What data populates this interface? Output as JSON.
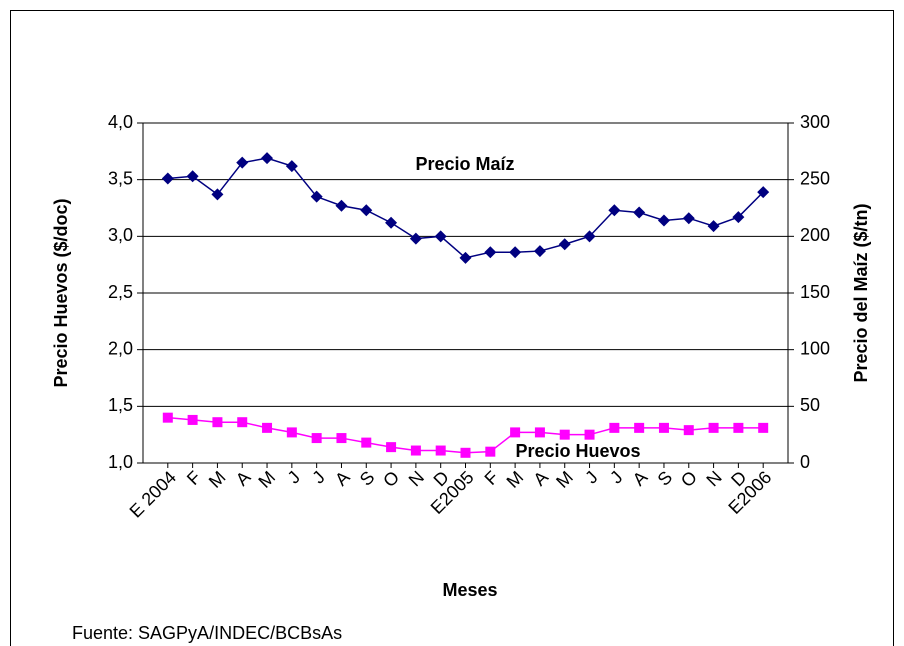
{
  "chart_data": {
    "type": "line",
    "x_label": "Meses",
    "y_label": "Precio Huevos ($/doc)",
    "y2_label": "Precio del Maíz ($/tn)",
    "source": "Fuente: SAGPyA/INDEC/BCBsAs",
    "annotations": [
      "Precio Maíz",
      "Precio Huevos"
    ],
    "categories": [
      "E 2004",
      "F",
      "M",
      "A",
      "M",
      "J",
      "J",
      "A",
      "S",
      "O",
      "N",
      "D",
      "E2005",
      "F",
      "M",
      "A",
      "M",
      "J",
      "J",
      "A",
      "S",
      "O",
      "N",
      "D",
      "E2006"
    ],
    "series": [
      {
        "name": "Precio Maíz",
        "color": "#000080",
        "marker": "diamond",
        "axis": "y2",
        "values": [
          251,
          253,
          237,
          265,
          269,
          262,
          235,
          227,
          223,
          212,
          198,
          200,
          181,
          186,
          186,
          187,
          193,
          200,
          223,
          221,
          214,
          216,
          209,
          217,
          239
        ]
      },
      {
        "name": "Precio Huevos",
        "color": "#ff00ff",
        "marker": "square",
        "values": [
          1.4,
          1.38,
          1.36,
          1.36,
          1.31,
          1.27,
          1.22,
          1.22,
          1.18,
          1.14,
          1.11,
          1.11,
          1.09,
          1.1,
          1.27,
          1.27,
          1.25,
          1.25,
          1.31,
          1.31,
          1.31,
          1.29,
          1.31,
          1.31,
          1.31
        ]
      }
    ],
    "ylim": [
      1.0,
      4.0
    ],
    "yticks": [
      {
        "value": 1.0,
        "label": "1,0"
      },
      {
        "value": 1.5,
        "label": "1,5"
      },
      {
        "value": 2.0,
        "label": "2,0"
      },
      {
        "value": 2.5,
        "label": "2,5"
      },
      {
        "value": 3.0,
        "label": "3,0"
      },
      {
        "value": 3.5,
        "label": "3,5"
      },
      {
        "value": 4.0,
        "label": "4,0"
      }
    ],
    "y2lim": [
      0,
      300
    ],
    "y2ticks": [
      0,
      50,
      100,
      150,
      200,
      250,
      300
    ],
    "grid": true
  }
}
